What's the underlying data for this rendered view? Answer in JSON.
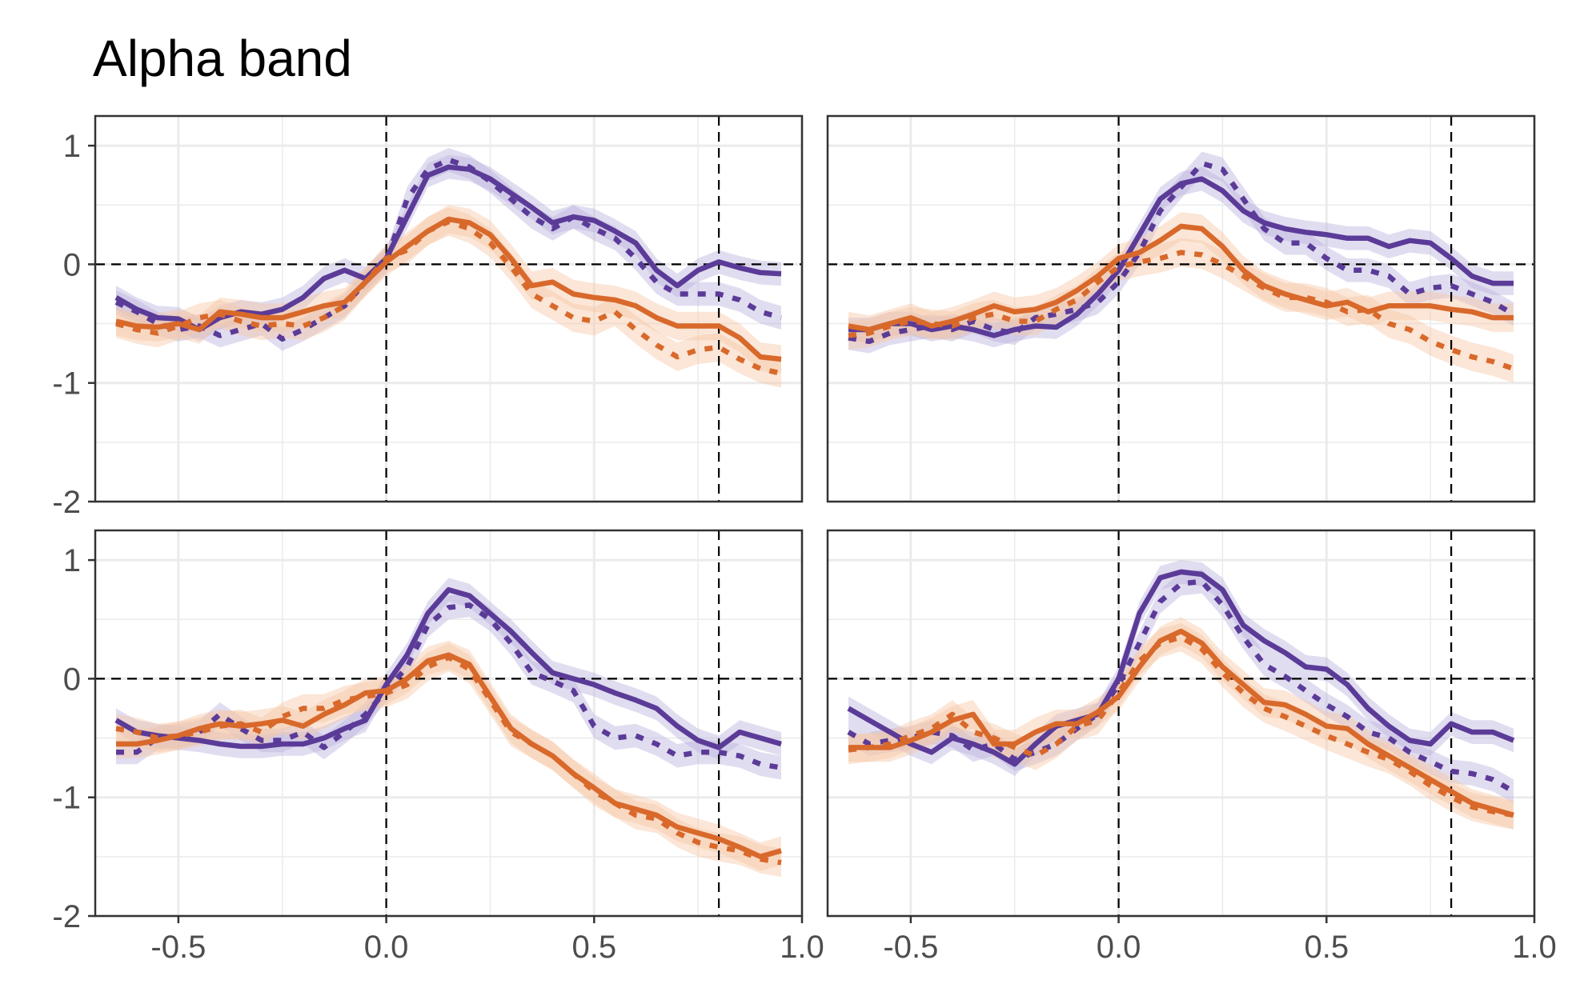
{
  "title": "Alpha band",
  "colors": {
    "purple": "#5b3b98",
    "orange": "#d8692b",
    "purple_band": "#bcb3de",
    "orange_band": "#f6c7a6",
    "grid": "#ebebeb",
    "frame": "#333333"
  },
  "chart_data": [
    {
      "type": "line",
      "panel": "top-left",
      "xlim": [
        -0.7,
        1.0
      ],
      "ylim": [
        -2,
        1.25
      ],
      "x_ticks": [
        "-0.5",
        "0.0",
        "0.5",
        "1.0"
      ],
      "y_ticks": [
        "-2",
        "-1",
        "0",
        "1"
      ],
      "vlines": [
        0.0,
        0.8
      ],
      "hline": 0,
      "grid": true,
      "x": [
        -0.65,
        -0.6,
        -0.55,
        -0.5,
        -0.45,
        -0.4,
        -0.35,
        -0.3,
        -0.25,
        -0.2,
        -0.15,
        -0.1,
        -0.05,
        0.0,
        0.05,
        0.1,
        0.15,
        0.2,
        0.25,
        0.3,
        0.35,
        0.4,
        0.45,
        0.5,
        0.55,
        0.6,
        0.65,
        0.7,
        0.75,
        0.8,
        0.85,
        0.9,
        0.95
      ],
      "series": [
        {
          "color": "purple",
          "style": "solid",
          "band": 0.1,
          "values": [
            -0.28,
            -0.38,
            -0.45,
            -0.46,
            -0.55,
            -0.45,
            -0.4,
            -0.42,
            -0.38,
            -0.28,
            -0.12,
            -0.05,
            -0.12,
            0.05,
            0.4,
            0.75,
            0.82,
            0.8,
            0.72,
            0.6,
            0.48,
            0.35,
            0.4,
            0.37,
            0.28,
            0.18,
            -0.05,
            -0.18,
            -0.05,
            0.02,
            -0.03,
            -0.07,
            -0.08
          ]
        },
        {
          "color": "purple",
          "style": "dotted",
          "band": 0.1,
          "values": [
            -0.32,
            -0.4,
            -0.5,
            -0.55,
            -0.52,
            -0.6,
            -0.55,
            -0.5,
            -0.63,
            -0.55,
            -0.45,
            -0.35,
            -0.15,
            0.02,
            0.55,
            0.8,
            0.88,
            0.82,
            0.7,
            0.55,
            0.4,
            0.3,
            0.4,
            0.3,
            0.22,
            0.05,
            -0.15,
            -0.25,
            -0.25,
            -0.25,
            -0.3,
            -0.4,
            -0.45
          ]
        },
        {
          "color": "orange",
          "style": "solid",
          "band": 0.12,
          "values": [
            -0.48,
            -0.52,
            -0.53,
            -0.5,
            -0.55,
            -0.4,
            -0.42,
            -0.45,
            -0.45,
            -0.4,
            -0.35,
            -0.32,
            -0.15,
            0.02,
            0.15,
            0.28,
            0.38,
            0.35,
            0.25,
            0.05,
            -0.18,
            -0.15,
            -0.25,
            -0.28,
            -0.3,
            -0.35,
            -0.45,
            -0.52,
            -0.52,
            -0.52,
            -0.62,
            -0.78,
            -0.8
          ]
        },
        {
          "color": "orange",
          "style": "dotted",
          "band": 0.12,
          "values": [
            -0.5,
            -0.55,
            -0.58,
            -0.52,
            -0.45,
            -0.42,
            -0.48,
            -0.52,
            -0.5,
            -0.52,
            -0.45,
            -0.35,
            -0.15,
            0.05,
            0.12,
            0.28,
            0.36,
            0.3,
            0.18,
            -0.02,
            -0.25,
            -0.35,
            -0.45,
            -0.48,
            -0.4,
            -0.55,
            -0.68,
            -0.78,
            -0.72,
            -0.7,
            -0.8,
            -0.88,
            -0.92
          ]
        }
      ]
    },
    {
      "type": "line",
      "panel": "top-right",
      "xlim": [
        -0.7,
        1.0
      ],
      "ylim": [
        -2,
        1.25
      ],
      "x_ticks": [
        "-0.5",
        "0.0",
        "0.5",
        "1.0"
      ],
      "y_ticks": [
        "-2",
        "-1",
        "0",
        "1"
      ],
      "vlines": [
        0.0,
        0.8
      ],
      "hline": 0,
      "grid": true,
      "x": [
        -0.65,
        -0.6,
        -0.55,
        -0.5,
        -0.45,
        -0.4,
        -0.35,
        -0.3,
        -0.25,
        -0.2,
        -0.15,
        -0.1,
        -0.05,
        0.0,
        0.05,
        0.1,
        0.15,
        0.2,
        0.25,
        0.3,
        0.35,
        0.4,
        0.45,
        0.5,
        0.55,
        0.6,
        0.65,
        0.7,
        0.75,
        0.8,
        0.85,
        0.9,
        0.95
      ],
      "series": [
        {
          "color": "purple",
          "style": "solid",
          "band": 0.1,
          "values": [
            -0.55,
            -0.55,
            -0.5,
            -0.5,
            -0.55,
            -0.52,
            -0.55,
            -0.6,
            -0.55,
            -0.52,
            -0.53,
            -0.42,
            -0.25,
            -0.05,
            0.25,
            0.55,
            0.68,
            0.72,
            0.62,
            0.45,
            0.35,
            0.3,
            0.27,
            0.25,
            0.22,
            0.22,
            0.15,
            0.2,
            0.18,
            0.05,
            -0.1,
            -0.16,
            -0.16
          ]
        },
        {
          "color": "purple",
          "style": "dotted",
          "band": 0.1,
          "values": [
            -0.62,
            -0.65,
            -0.58,
            -0.55,
            -0.52,
            -0.55,
            -0.48,
            -0.55,
            -0.58,
            -0.45,
            -0.42,
            -0.38,
            -0.32,
            -0.15,
            0.1,
            0.45,
            0.65,
            0.85,
            0.8,
            0.55,
            0.3,
            0.18,
            0.18,
            0.05,
            -0.05,
            -0.05,
            -0.1,
            -0.25,
            -0.2,
            -0.18,
            -0.25,
            -0.32,
            -0.42
          ]
        },
        {
          "color": "orange",
          "style": "solid",
          "band": 0.12,
          "values": [
            -0.52,
            -0.55,
            -0.5,
            -0.45,
            -0.52,
            -0.48,
            -0.42,
            -0.35,
            -0.4,
            -0.38,
            -0.32,
            -0.22,
            -0.1,
            0.05,
            0.1,
            0.2,
            0.32,
            0.3,
            0.15,
            -0.05,
            -0.18,
            -0.25,
            -0.3,
            -0.35,
            -0.32,
            -0.4,
            -0.35,
            -0.35,
            -0.35,
            -0.38,
            -0.4,
            -0.45,
            -0.45
          ]
        },
        {
          "color": "orange",
          "style": "dotted",
          "band": 0.12,
          "values": [
            -0.6,
            -0.58,
            -0.52,
            -0.48,
            -0.5,
            -0.52,
            -0.45,
            -0.42,
            -0.48,
            -0.48,
            -0.38,
            -0.3,
            -0.15,
            -0.02,
            0.02,
            0.05,
            0.1,
            0.08,
            0.0,
            -0.1,
            -0.2,
            -0.28,
            -0.28,
            -0.32,
            -0.4,
            -0.38,
            -0.5,
            -0.55,
            -0.65,
            -0.72,
            -0.78,
            -0.82,
            -0.88
          ]
        }
      ]
    },
    {
      "type": "line",
      "panel": "bottom-left",
      "xlim": [
        -0.7,
        1.0
      ],
      "ylim": [
        -2,
        1.25
      ],
      "x_ticks": [
        "-0.5",
        "0.0",
        "0.5",
        "1.0"
      ],
      "y_ticks": [
        "-2",
        "-1",
        "0",
        "1"
      ],
      "vlines": [
        0.0,
        0.8
      ],
      "hline": 0,
      "grid": true,
      "x": [
        -0.65,
        -0.6,
        -0.55,
        -0.5,
        -0.45,
        -0.4,
        -0.35,
        -0.3,
        -0.25,
        -0.2,
        -0.15,
        -0.1,
        -0.05,
        0.0,
        0.05,
        0.1,
        0.15,
        0.2,
        0.25,
        0.3,
        0.35,
        0.4,
        0.45,
        0.5,
        0.55,
        0.6,
        0.65,
        0.7,
        0.75,
        0.8,
        0.85,
        0.9,
        0.95
      ],
      "series": [
        {
          "color": "purple",
          "style": "solid",
          "band": 0.1,
          "values": [
            -0.35,
            -0.45,
            -0.48,
            -0.5,
            -0.52,
            -0.55,
            -0.57,
            -0.57,
            -0.55,
            -0.55,
            -0.5,
            -0.42,
            -0.35,
            -0.05,
            0.2,
            0.55,
            0.75,
            0.7,
            0.55,
            0.4,
            0.22,
            0.05,
            0.0,
            -0.05,
            -0.12,
            -0.18,
            -0.25,
            -0.4,
            -0.52,
            -0.58,
            -0.45,
            -0.5,
            -0.55
          ]
        },
        {
          "color": "purple",
          "style": "dotted",
          "band": 0.1,
          "values": [
            -0.62,
            -0.62,
            -0.5,
            -0.48,
            -0.45,
            -0.3,
            -0.42,
            -0.52,
            -0.52,
            -0.45,
            -0.58,
            -0.45,
            -0.3,
            -0.1,
            0.1,
            0.45,
            0.6,
            0.62,
            0.5,
            0.3,
            0.05,
            -0.02,
            -0.1,
            -0.4,
            -0.5,
            -0.48,
            -0.55,
            -0.65,
            -0.62,
            -0.62,
            -0.65,
            -0.72,
            -0.75
          ]
        },
        {
          "color": "orange",
          "style": "solid",
          "band": 0.12,
          "values": [
            -0.55,
            -0.55,
            -0.52,
            -0.48,
            -0.42,
            -0.38,
            -0.4,
            -0.38,
            -0.35,
            -0.4,
            -0.3,
            -0.22,
            -0.12,
            -0.1,
            0.0,
            0.15,
            0.2,
            0.12,
            -0.15,
            -0.42,
            -0.55,
            -0.65,
            -0.8,
            -0.92,
            -1.05,
            -1.1,
            -1.15,
            -1.25,
            -1.3,
            -1.35,
            -1.42,
            -1.5,
            -1.45
          ]
        },
        {
          "color": "orange",
          "style": "dotted",
          "band": 0.12,
          "values": [
            -0.42,
            -0.45,
            -0.5,
            -0.48,
            -0.45,
            -0.4,
            -0.38,
            -0.45,
            -0.32,
            -0.25,
            -0.25,
            -0.18,
            -0.15,
            -0.12,
            -0.05,
            0.1,
            0.18,
            0.08,
            -0.18,
            -0.45,
            -0.55,
            -0.65,
            -0.8,
            -0.95,
            -1.05,
            -1.15,
            -1.18,
            -1.3,
            -1.38,
            -1.42,
            -1.45,
            -1.52,
            -1.55
          ]
        }
      ]
    },
    {
      "type": "line",
      "panel": "bottom-right",
      "xlim": [
        -0.7,
        1.0
      ],
      "ylim": [
        -2,
        1.25
      ],
      "x_ticks": [
        "-0.5",
        "0.0",
        "0.5",
        "1.0"
      ],
      "y_ticks": [
        "-2",
        "-1",
        "0",
        "1"
      ],
      "vlines": [
        0.0,
        0.8
      ],
      "hline": 0,
      "grid": true,
      "x": [
        -0.65,
        -0.6,
        -0.55,
        -0.5,
        -0.45,
        -0.4,
        -0.35,
        -0.3,
        -0.25,
        -0.2,
        -0.15,
        -0.1,
        -0.05,
        0.0,
        0.05,
        0.1,
        0.15,
        0.2,
        0.25,
        0.3,
        0.35,
        0.4,
        0.45,
        0.5,
        0.55,
        0.6,
        0.65,
        0.7,
        0.75,
        0.8,
        0.85,
        0.9,
        0.95
      ],
      "series": [
        {
          "color": "purple",
          "style": "solid",
          "band": 0.1,
          "values": [
            -0.25,
            -0.35,
            -0.45,
            -0.55,
            -0.62,
            -0.5,
            -0.55,
            -0.62,
            -0.72,
            -0.55,
            -0.4,
            -0.35,
            -0.3,
            0.0,
            0.55,
            0.85,
            0.9,
            0.88,
            0.75,
            0.45,
            0.32,
            0.22,
            0.1,
            0.08,
            -0.05,
            -0.25,
            -0.4,
            -0.52,
            -0.55,
            -0.38,
            -0.45,
            -0.45,
            -0.52
          ]
        },
        {
          "color": "purple",
          "style": "dotted",
          "band": 0.1,
          "values": [
            -0.45,
            -0.55,
            -0.52,
            -0.5,
            -0.45,
            -0.48,
            -0.6,
            -0.55,
            -0.68,
            -0.62,
            -0.55,
            -0.42,
            -0.3,
            -0.05,
            0.3,
            0.65,
            0.8,
            0.82,
            0.62,
            0.35,
            0.12,
            0.02,
            -0.1,
            -0.22,
            -0.32,
            -0.45,
            -0.5,
            -0.62,
            -0.7,
            -0.78,
            -0.8,
            -0.85,
            -0.95
          ]
        },
        {
          "color": "orange",
          "style": "solid",
          "band": 0.12,
          "values": [
            -0.58,
            -0.58,
            -0.58,
            -0.52,
            -0.45,
            -0.35,
            -0.3,
            -0.55,
            -0.55,
            -0.45,
            -0.38,
            -0.38,
            -0.28,
            -0.15,
            0.1,
            0.32,
            0.4,
            0.3,
            0.1,
            -0.05,
            -0.2,
            -0.22,
            -0.3,
            -0.4,
            -0.42,
            -0.55,
            -0.65,
            -0.75,
            -0.85,
            -0.95,
            -1.05,
            -1.1,
            -1.15
          ]
        },
        {
          "color": "orange",
          "style": "dotted",
          "band": 0.12,
          "values": [
            -0.6,
            -0.58,
            -0.55,
            -0.48,
            -0.42,
            -0.3,
            -0.45,
            -0.5,
            -0.58,
            -0.65,
            -0.55,
            -0.4,
            -0.35,
            -0.12,
            0.15,
            0.3,
            0.35,
            0.25,
            0.05,
            -0.12,
            -0.25,
            -0.32,
            -0.4,
            -0.48,
            -0.55,
            -0.62,
            -0.68,
            -0.78,
            -0.9,
            -1.0,
            -1.08,
            -1.12,
            -1.15
          ]
        }
      ]
    }
  ]
}
